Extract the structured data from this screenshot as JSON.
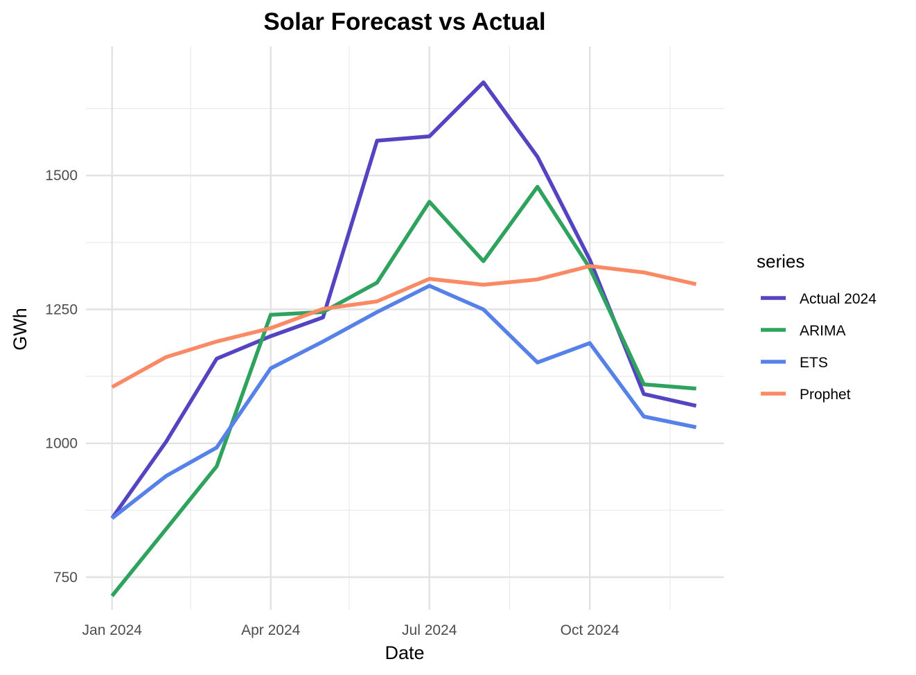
{
  "chart_data": {
    "type": "line",
    "title": "Solar Forecast vs Actual",
    "xlabel": "Date",
    "ylabel": "GWh",
    "x": [
      "2024-01-01",
      "2024-02-01",
      "2024-03-01",
      "2024-04-01",
      "2024-05-01",
      "2024-06-01",
      "2024-07-01",
      "2024-08-01",
      "2024-09-01",
      "2024-10-01",
      "2024-11-01",
      "2024-12-01"
    ],
    "x_ticks": [
      {
        "date": "2024-01-01",
        "label": "Jan 2024"
      },
      {
        "date": "2024-04-01",
        "label": "Apr 2024"
      },
      {
        "date": "2024-07-01",
        "label": "Jul 2024"
      },
      {
        "date": "2024-10-01",
        "label": "Oct 2024"
      }
    ],
    "x_minor_ticks": [
      "2024-02-15",
      "2024-05-16",
      "2024-08-16",
      "2024-11-16"
    ],
    "xlim": [
      "2023-12-17",
      "2024-12-17"
    ],
    "y_ticks": [
      750,
      1000,
      1250,
      1500
    ],
    "y_minor_ticks": [
      875,
      1125,
      1375,
      1625
    ],
    "ylim": [
      689,
      1741
    ],
    "grid": true,
    "legend": {
      "title": "series",
      "position": "right"
    },
    "series": [
      {
        "name": "Actual 2024",
        "color": "#5544c2",
        "values": [
          860,
          1003,
          1158,
          1200,
          1235,
          1565,
          1573,
          1674,
          1535,
          1343,
          1092,
          1070
        ]
      },
      {
        "name": "ARIMA",
        "color": "#2fa35d",
        "values": [
          715,
          840,
          957,
          1240,
          1245,
          1300,
          1451,
          1340,
          1479,
          1327,
          1110,
          1102
        ]
      },
      {
        "name": "ETS",
        "color": "#5581e8",
        "values": [
          860,
          939,
          992,
          1140,
          1190,
          1245,
          1294,
          1250,
          1151,
          1187,
          1050,
          1030
        ]
      },
      {
        "name": "Prophet",
        "color": "#fa8a65",
        "values": [
          1105,
          1161,
          1190,
          1215,
          1251,
          1265,
          1307,
          1296,
          1306,
          1331,
          1319,
          1297
        ]
      }
    ]
  }
}
